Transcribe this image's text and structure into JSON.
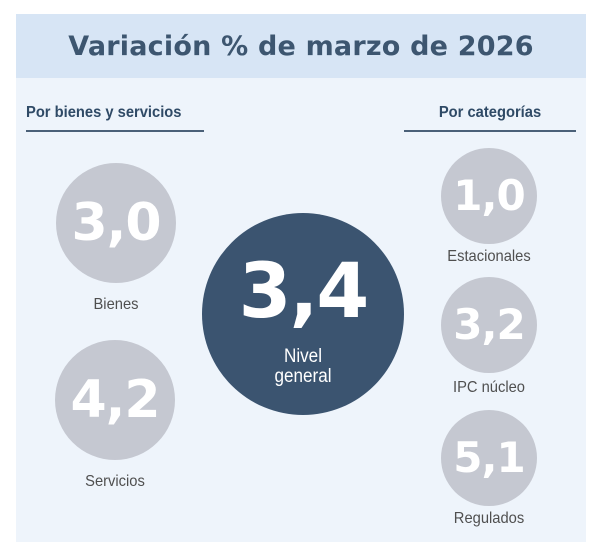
{
  "title": "Variación % de marzo de 2026",
  "left_section": {
    "label": "Por bienes y servicios",
    "items": [
      {
        "value": "3,0",
        "label": "Bienes"
      },
      {
        "value": "4,2",
        "label": "Servicios"
      }
    ]
  },
  "center": {
    "value": "3,4",
    "label_line1": "Nivel",
    "label_line2": "general"
  },
  "right_section": {
    "label": "Por categorías",
    "items": [
      {
        "value": "1,0",
        "label": "Estacionales"
      },
      {
        "value": "3,2",
        "label": "IPC núcleo"
      },
      {
        "value": "5,1",
        "label": "Regulados"
      }
    ]
  },
  "colors": {
    "header_bg": "#d7e5f5",
    "panel_bg": "#eef4fb",
    "title": "#3d5670",
    "small_circle": "#c5c8d1",
    "big_circle": "#3b5470"
  }
}
